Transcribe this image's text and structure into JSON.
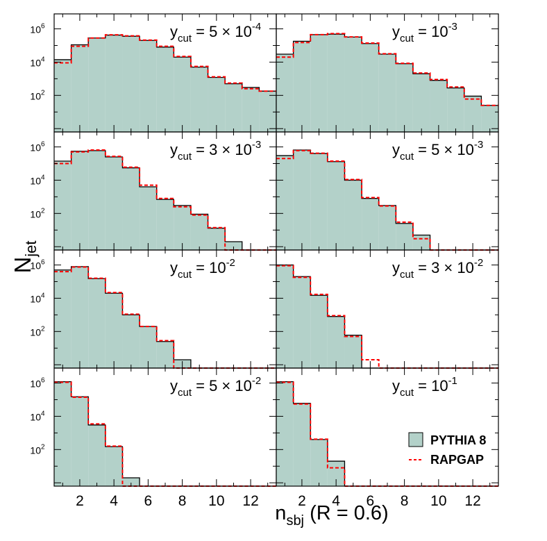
{
  "chart_data": {
    "type": "histogram-grid",
    "ylabel": "N",
    "ylabel_sub": "jet",
    "xlabel_main": "n",
    "xlabel_sub": "sbj",
    "xlabel_suffix": " (R = 0.6)",
    "x_range": [
      0.5,
      13.5
    ],
    "y_range_log10": [
      -0.2,
      6.9
    ],
    "x_ticks": [
      2,
      4,
      6,
      8,
      10,
      12
    ],
    "y_ticks": [
      2,
      4,
      6
    ],
    "x_tick_labels": [
      "2",
      "4",
      "6",
      "8",
      "10",
      "12"
    ],
    "y_tick_base": "10",
    "y_tick_exps": [
      "2",
      "4",
      "6"
    ],
    "bin_centers": [
      1,
      2,
      3,
      4,
      5,
      6,
      7,
      8,
      9,
      10,
      11,
      12,
      13
    ],
    "legend": {
      "pythia_label": "PYTHIA 8",
      "rapgap_label": "RAPGAP",
      "pythia_fill": "#b3d1c9",
      "rapgap_color": "#ff0000"
    },
    "panels": [
      {
        "ycut_prefix": "5 × 10",
        "ycut_exp": "-4",
        "pythia": [
          14000,
          110000,
          280000,
          420000,
          360000,
          200000,
          80000,
          20000,
          5000,
          1200,
          500,
          300,
          180
        ],
        "rapgap": [
          9000,
          90000,
          280000,
          440000,
          380000,
          210000,
          90000,
          22000,
          5500,
          1300,
          550,
          250,
          180
        ]
      },
      {
        "ycut_prefix": "10",
        "ycut_exp": "-3",
        "pythia": [
          30000,
          180000,
          450000,
          480000,
          320000,
          130000,
          30000,
          8000,
          2000,
          800,
          280,
          90,
          25
        ],
        "rapgap": [
          20000,
          150000,
          450000,
          520000,
          330000,
          140000,
          32000,
          8500,
          2200,
          900,
          320,
          60,
          25
        ]
      },
      {
        "ycut_prefix": "3 × 10",
        "ycut_exp": "-3",
        "pythia": [
          140000,
          550000,
          600000,
          250000,
          55000,
          4000,
          700,
          300,
          90,
          13,
          2,
          0,
          0
        ],
        "rapgap": [
          100000,
          500000,
          650000,
          270000,
          60000,
          5000,
          800,
          250,
          80,
          14,
          0,
          0,
          0
        ]
      },
      {
        "ycut_prefix": "5 × 10",
        "ycut_exp": "-3",
        "pythia": [
          300000,
          650000,
          400000,
          130000,
          10000,
          800,
          300,
          25,
          5,
          0,
          0,
          0,
          0
        ],
        "rapgap": [
          200000,
          600000,
          420000,
          140000,
          11000,
          900,
          280,
          30,
          3,
          0,
          0,
          0,
          0
        ]
      },
      {
        "ycut_prefix": "10",
        "ycut_exp": "-2",
        "pythia": [
          500000,
          800000,
          150000,
          20000,
          1000,
          200,
          25,
          2,
          0,
          0,
          0,
          0,
          0
        ],
        "rapgap": [
          400000,
          750000,
          160000,
          22000,
          1100,
          200,
          28,
          0,
          0,
          0,
          0,
          0,
          0
        ]
      },
      {
        "ycut_prefix": "3 × 10",
        "ycut_exp": "-2",
        "pythia": [
          1000000,
          200000,
          15000,
          800,
          60,
          0,
          0,
          0,
          0,
          0,
          0,
          0,
          0
        ],
        "rapgap": [
          900000,
          180000,
          17000,
          900,
          50,
          2,
          0,
          0,
          0,
          0,
          0,
          0,
          0
        ]
      },
      {
        "ycut_prefix": "5 × 10",
        "ycut_exp": "-2",
        "pythia": [
          1200000,
          150000,
          3000,
          150,
          2,
          0,
          0,
          0,
          0,
          0,
          0,
          0,
          0
        ],
        "rapgap": [
          1100000,
          140000,
          3500,
          160,
          0,
          0,
          0,
          0,
          0,
          0,
          0,
          0,
          0
        ]
      },
      {
        "ycut_prefix": "10",
        "ycut_exp": "-1",
        "pythia": [
          1200000,
          60000,
          400,
          20,
          0,
          0,
          0,
          0,
          0,
          0,
          0,
          0,
          0
        ],
        "rapgap": [
          1100000,
          55000,
          420,
          8,
          0,
          0,
          0,
          0,
          0,
          0,
          0,
          0,
          0
        ]
      }
    ]
  }
}
